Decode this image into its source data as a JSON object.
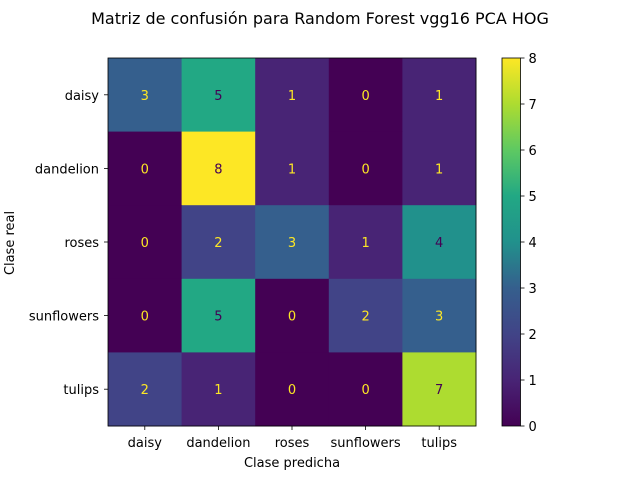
{
  "chart_data": {
    "type": "heatmap",
    "title": "Matriz de confusión para Random Forest vgg16 PCA HOG",
    "xlabel": "Clase predicha",
    "ylabel": "Clase real",
    "x_categories": [
      "daisy",
      "dandelion",
      "roses",
      "sunflowers",
      "tulips"
    ],
    "y_categories": [
      "daisy",
      "dandelion",
      "roses",
      "sunflowers",
      "tulips"
    ],
    "values": [
      [
        3,
        5,
        1,
        0,
        1
      ],
      [
        0,
        8,
        1,
        0,
        1
      ],
      [
        0,
        2,
        3,
        1,
        4
      ],
      [
        0,
        5,
        0,
        2,
        3
      ],
      [
        2,
        1,
        0,
        0,
        7
      ]
    ],
    "colormap": "viridis",
    "colorbar": {
      "range": [
        0,
        8
      ],
      "ticks": [
        "0",
        "1",
        "2",
        "3",
        "4",
        "5",
        "6",
        "7",
        "8"
      ]
    },
    "text_color_light": "#fde725",
    "text_color_dark": "#440154"
  }
}
